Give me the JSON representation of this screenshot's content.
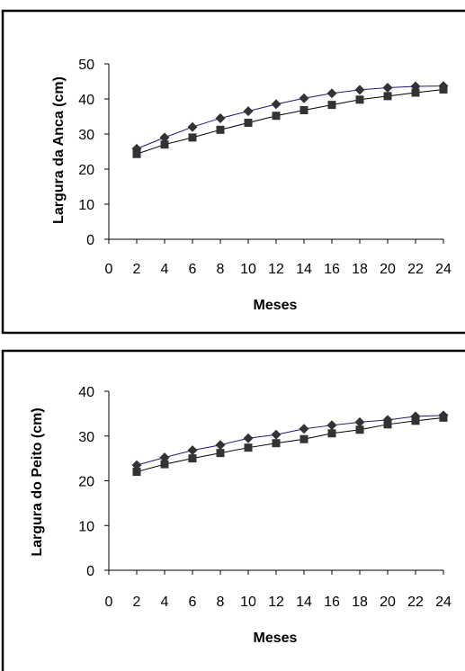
{
  "chart_data": [
    {
      "type": "line",
      "title": "",
      "xlabel": "Meses",
      "ylabel": "Largura da Anca (cm)",
      "x": [
        2,
        4,
        6,
        8,
        10,
        12,
        14,
        16,
        18,
        20,
        22,
        24
      ],
      "xlim": [
        0,
        24
      ],
      "xticks": [
        0,
        2,
        4,
        6,
        8,
        10,
        12,
        14,
        16,
        18,
        20,
        22,
        24
      ],
      "ylim": [
        0,
        50
      ],
      "yticks": [
        0,
        10,
        20,
        30,
        40,
        50
      ],
      "grid": false,
      "legend": "none",
      "series": [
        {
          "marker": "diamond",
          "line_color": "#1a1a80",
          "marker_color": "#333333",
          "values": [
            25.8,
            29.0,
            32.0,
            34.5,
            36.5,
            38.5,
            40.2,
            41.6,
            42.6,
            43.2,
            43.6,
            43.7
          ]
        },
        {
          "marker": "square",
          "line_color": "#000000",
          "marker_color": "#333333",
          "values": [
            24.3,
            27.0,
            29.0,
            31.2,
            33.2,
            35.2,
            36.8,
            38.3,
            39.8,
            40.8,
            41.8,
            42.7
          ]
        }
      ]
    },
    {
      "type": "line",
      "title": "",
      "xlabel": "Meses",
      "ylabel": "Largura do Peito (cm)",
      "x": [
        2,
        4,
        6,
        8,
        10,
        12,
        14,
        16,
        18,
        20,
        22,
        24
      ],
      "xlim": [
        0,
        24
      ],
      "xticks": [
        0,
        2,
        4,
        6,
        8,
        10,
        12,
        14,
        16,
        18,
        20,
        22,
        24
      ],
      "ylim": [
        0,
        40
      ],
      "yticks": [
        0,
        10,
        20,
        30,
        40
      ],
      "grid": false,
      "legend": "none",
      "series": [
        {
          "marker": "diamond",
          "line_color": "#1a1a80",
          "marker_color": "#333333",
          "values": [
            23.5,
            25.2,
            26.8,
            28.0,
            29.5,
            30.3,
            31.6,
            32.4,
            33.1,
            33.6,
            34.4,
            34.6
          ]
        },
        {
          "marker": "square",
          "line_color": "#000000",
          "marker_color": "#333333",
          "values": [
            22.0,
            23.7,
            25.0,
            26.2,
            27.4,
            28.4,
            29.3,
            30.6,
            31.4,
            32.6,
            33.4,
            34.1
          ]
        }
      ]
    }
  ]
}
